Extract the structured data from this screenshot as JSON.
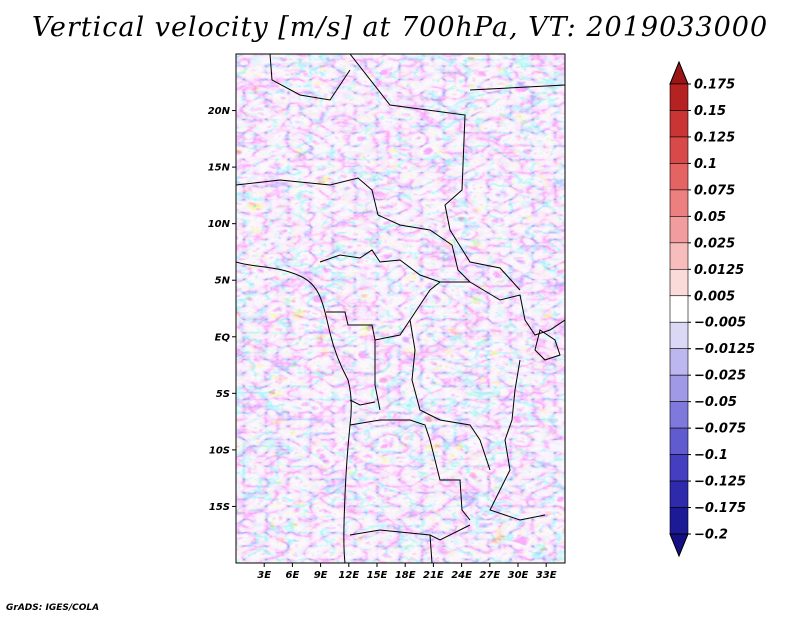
{
  "title": "Vertical velocity [m/s] at 700hPa, VT: 2019033000",
  "credit": "GrADS: IGES/COLA",
  "map": {
    "lat_labels": [
      "20N",
      "15N",
      "10N",
      "5N",
      "EQ",
      "5S",
      "10S",
      "15S"
    ],
    "lat_values": [
      20,
      15,
      10,
      5,
      0,
      -5,
      -10,
      -15
    ],
    "lon_labels": [
      "3E",
      "6E",
      "9E",
      "12E",
      "15E",
      "18E",
      "21E",
      "24E",
      "27E",
      "30E",
      "33E"
    ],
    "lon_values": [
      3,
      6,
      9,
      12,
      15,
      18,
      21,
      24,
      27,
      30,
      33
    ],
    "lat_range": [
      -20,
      25
    ],
    "lon_range": [
      0,
      35
    ]
  },
  "colorbar": {
    "labels": [
      "0.175",
      "0.15",
      "0.125",
      "0.1",
      "0.075",
      "0.05",
      "0.025",
      "0.0125",
      "0.005",
      "−0.005",
      "−0.0125",
      "−0.025",
      "−0.05",
      "−0.075",
      "−0.1",
      "−0.125",
      "−0.175",
      "−0.2"
    ],
    "colors": [
      "#9b1515",
      "#b52222",
      "#c93434",
      "#d84a4a",
      "#e46464",
      "#ec8080",
      "#f29d9d",
      "#f7bcbc",
      "#fbdada",
      "#ffffff",
      "#dad8f5",
      "#bcb8ef",
      "#9f99e6",
      "#8079dc",
      "#615bd0",
      "#443fc0",
      "#2d2aac",
      "#1c1a95",
      "#140f86"
    ]
  }
}
